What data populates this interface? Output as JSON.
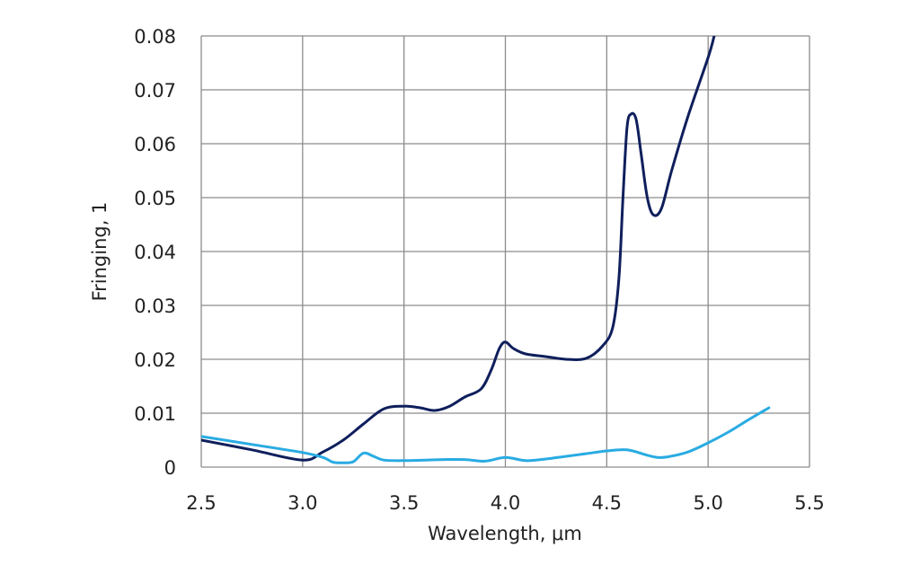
{
  "chart_data": {
    "type": "line",
    "title": "",
    "xlabel": "Wavelength, μm",
    "ylabel": "Fringing, 1",
    "xlim": [
      2.5,
      5.5
    ],
    "ylim": [
      0,
      0.08
    ],
    "xticks": [
      2.5,
      3.0,
      3.5,
      4.0,
      4.5,
      5.0,
      5.5
    ],
    "xtick_labels": [
      "2.5",
      "3.0",
      "3.5",
      "4.0",
      "4.5",
      "5.0",
      "5.5"
    ],
    "yticks": [
      0,
      0.01,
      0.02,
      0.03,
      0.04,
      0.05,
      0.06,
      0.07,
      0.08
    ],
    "ytick_labels": [
      "0",
      "0.01",
      "0.02",
      "0.03",
      "0.04",
      "0.05",
      "0.06",
      "0.07",
      "0.08"
    ],
    "grid": true,
    "legend": "none",
    "series": [
      {
        "color": "#0f1f5c",
        "x": [
          2.5,
          2.75,
          3.0,
          3.1,
          3.2,
          3.3,
          3.4,
          3.5,
          3.58,
          3.65,
          3.72,
          3.8,
          3.88,
          3.93,
          3.97,
          4.0,
          4.04,
          4.1,
          4.2,
          4.3,
          4.4,
          4.48,
          4.53,
          4.56,
          4.58,
          4.6,
          4.62,
          4.645,
          4.67,
          4.7,
          4.73,
          4.77,
          4.82,
          4.9,
          5.0,
          5.03
        ],
        "y": [
          0.005,
          0.0032,
          0.0013,
          0.0028,
          0.005,
          0.008,
          0.0108,
          0.0113,
          0.011,
          0.0105,
          0.0112,
          0.013,
          0.0145,
          0.018,
          0.022,
          0.0232,
          0.022,
          0.021,
          0.0205,
          0.02,
          0.0202,
          0.0225,
          0.026,
          0.035,
          0.05,
          0.063,
          0.0655,
          0.0645,
          0.058,
          0.05,
          0.0468,
          0.048,
          0.055,
          0.065,
          0.076,
          0.08
        ]
      },
      {
        "color": "#29abe2",
        "x": [
          2.5,
          2.75,
          3.0,
          3.1,
          3.15,
          3.2,
          3.25,
          3.3,
          3.35,
          3.4,
          3.5,
          3.6,
          3.7,
          3.8,
          3.9,
          4.0,
          4.1,
          4.2,
          4.3,
          4.4,
          4.5,
          4.6,
          4.7,
          4.75,
          4.8,
          4.9,
          5.0,
          5.1,
          5.2,
          5.3
        ],
        "y": [
          0.0057,
          0.0042,
          0.0027,
          0.0018,
          0.0009,
          0.0008,
          0.001,
          0.0026,
          0.002,
          0.0013,
          0.0012,
          0.0013,
          0.0014,
          0.0014,
          0.0011,
          0.0018,
          0.0012,
          0.0015,
          0.002,
          0.0025,
          0.003,
          0.0032,
          0.0022,
          0.0018,
          0.0019,
          0.0028,
          0.0045,
          0.0065,
          0.0088,
          0.011
        ]
      }
    ]
  }
}
